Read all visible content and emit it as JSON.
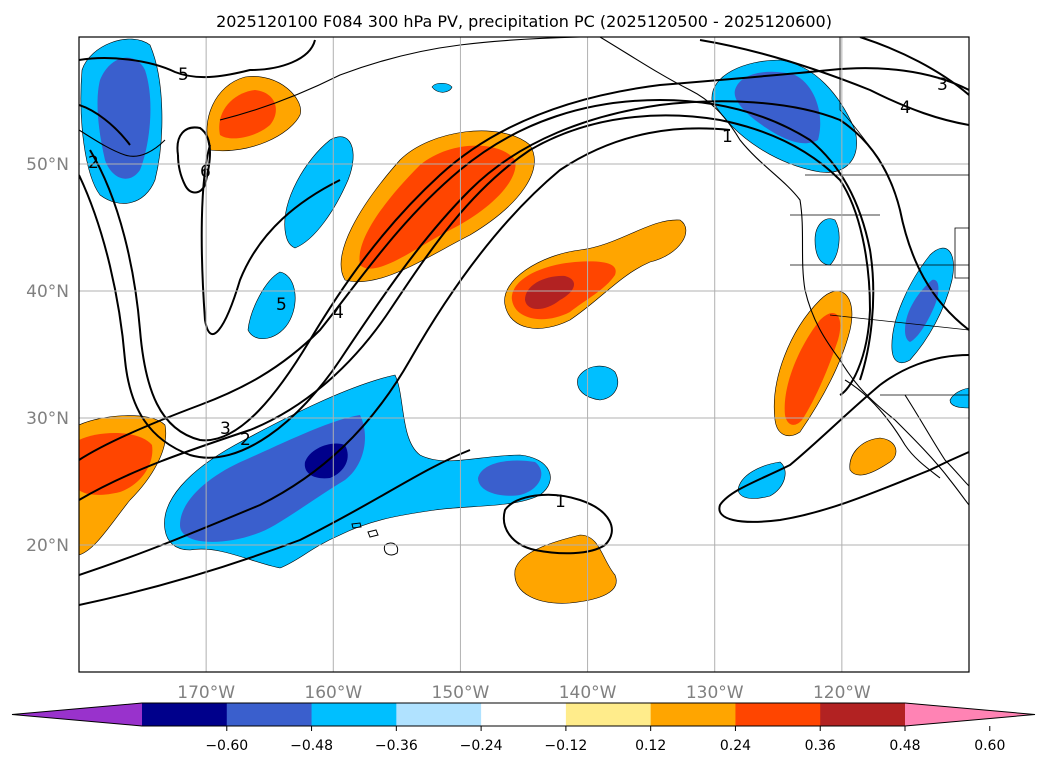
{
  "chart_data": {
    "type": "map",
    "title": "2025120100 F084 300 hPa PV, precipitation PC (2025120500 - 2025120600)",
    "lat_ticks": [
      {
        "value": 50,
        "label": "50°N"
      },
      {
        "value": 40,
        "label": "40°N"
      },
      {
        "value": 30,
        "label": "30°N"
      },
      {
        "value": 20,
        "label": "20°N"
      }
    ],
    "lon_ticks": [
      {
        "value": -170,
        "label": "170°W"
      },
      {
        "value": -160,
        "label": "160°W"
      },
      {
        "value": -150,
        "label": "150°W"
      },
      {
        "value": -140,
        "label": "140°W"
      },
      {
        "value": -130,
        "label": "130°W"
      },
      {
        "value": -120,
        "label": "120°W"
      }
    ],
    "lon_range": [
      -180,
      -110
    ],
    "lat_range": [
      10,
      60
    ],
    "grid": true,
    "pv_contour_labels": [
      "5",
      "6",
      "5",
      "4",
      "3",
      "2",
      "1",
      "1",
      "4",
      "3",
      "2"
    ],
    "colorbar": {
      "ticks": [
        "−0.60",
        "−0.48",
        "−0.36",
        "−0.24",
        "−0.12",
        "0.12",
        "0.24",
        "0.36",
        "0.48",
        "0.60"
      ],
      "colors": [
        "#9932cc",
        "#00008b",
        "#3a5fcd",
        "#00bfff",
        "#b0e2ff",
        "#ffffff",
        "#ffec8b",
        "#ffa500",
        "#ff4500",
        "#b22222",
        "#ff83b4"
      ],
      "extend": "both"
    }
  }
}
